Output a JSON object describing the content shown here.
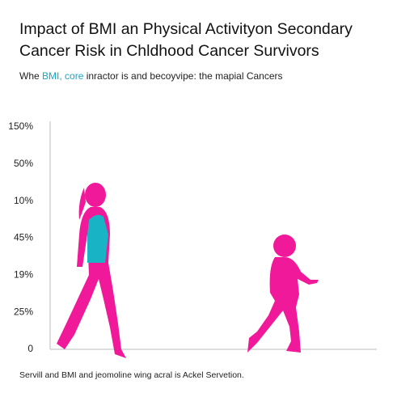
{
  "title": [
    "Impact of BMI an Physical Activityon Secondary",
    "Cancer Risk in Chldhood Cancer Survivors"
  ],
  "subtitle": [
    "Whe ",
    "BMI, core",
    " inractor is and becoyvipe: the mapial Cancers"
  ],
  "axis_labels": [
    "150%",
    "50%",
    "10%",
    "45%",
    "19%",
    "25%",
    "0"
  ],
  "footer": "Servill and BMI and jeomoline wing acral is Ackel Servetion."
}
